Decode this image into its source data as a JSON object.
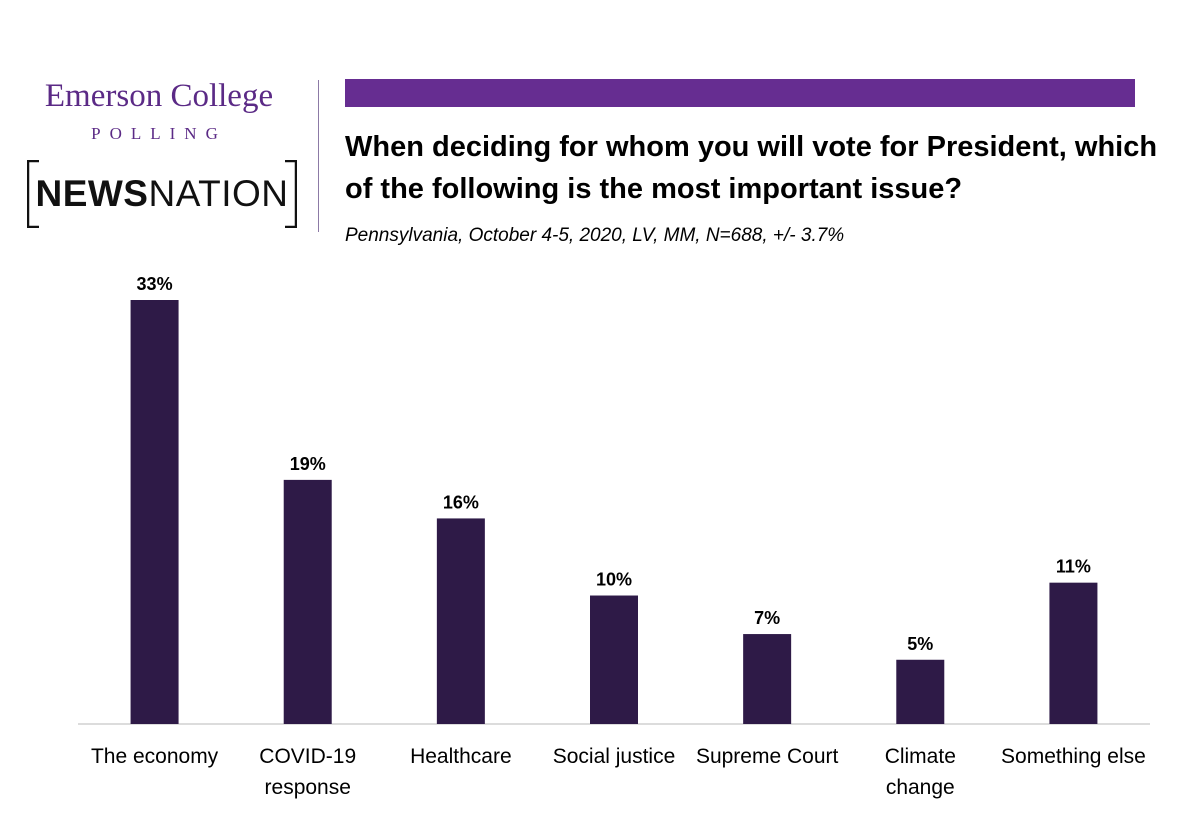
{
  "branding": {
    "emerson_line1": "Emerson College",
    "emerson_line2": "POLLING",
    "newsnation_bold": "NEWS",
    "newsnation_regular": "NATION"
  },
  "colors": {
    "accent": "#662d91",
    "bar": "#2e1a47",
    "text": "#000000"
  },
  "chart_data": {
    "type": "bar",
    "title": "When deciding for whom you will vote for President, which of the following is the most important issue?",
    "subtitle": "Pennsylvania, October 4-5, 2020, LV, MM,  N=688, +/-  3.7%",
    "categories": [
      [
        "The economy"
      ],
      [
        "COVID-19",
        "response"
      ],
      [
        "Healthcare"
      ],
      [
        "Social justice"
      ],
      [
        "Supreme Court"
      ],
      [
        "Climate",
        "change"
      ],
      [
        "Something else"
      ]
    ],
    "values": [
      33,
      19,
      16,
      10,
      7,
      5,
      11
    ],
    "data_labels": [
      "33%",
      "19%",
      "16%",
      "10%",
      "7%",
      "5%",
      "11%"
    ],
    "ylim": [
      0,
      33
    ],
    "grid": false
  }
}
